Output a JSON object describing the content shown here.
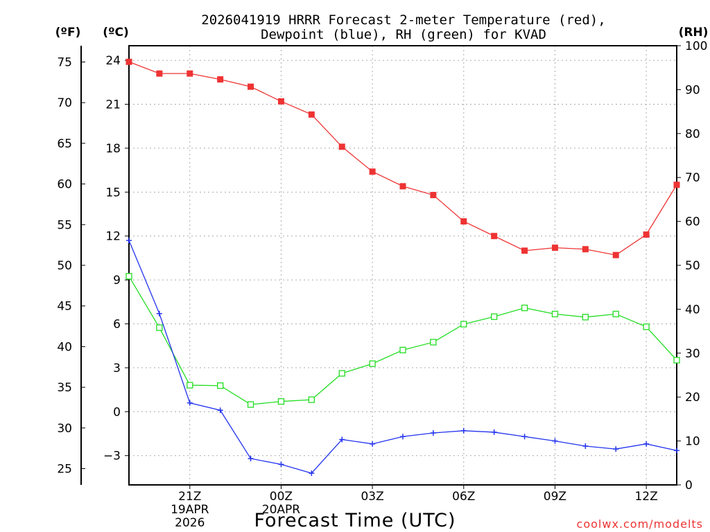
{
  "title_line1": "2026041919 HRRR Forecast 2-meter Temperature (red),",
  "title_line2": "Dewpoint (blue), RH (green) for KVAD",
  "unit_f": "(ºF)",
  "unit_c": "(ºC)",
  "unit_rh": "(RH)",
  "xlabel": "Forecast Time (UTC)",
  "watermark": "coolwx.com/modelts",
  "colors": {
    "temperature": "#ee3333",
    "dewpoint": "#2233ee",
    "rh": "#22dd22",
    "grid": "#aaaaaa"
  },
  "chart_data": {
    "type": "line",
    "x": [
      19,
      20,
      21,
      22,
      23,
      24,
      25,
      26,
      27,
      28,
      29,
      30,
      31,
      32,
      33,
      34,
      35,
      36,
      37
    ],
    "xlim": [
      19,
      37
    ],
    "ylim_c": [
      -5,
      25
    ],
    "ylim_rh": [
      0,
      100
    ],
    "yticks_c": [
      "24",
      "21",
      "18",
      "15",
      "12",
      "9",
      "6",
      "3",
      "0",
      "−3"
    ],
    "yticks_f": [
      "75",
      "70",
      "65",
      "60",
      "55",
      "50",
      "45",
      "40",
      "35",
      "30",
      "25"
    ],
    "yticks_rh": [
      "100",
      "90",
      "80",
      "70",
      "60",
      "50",
      "40",
      "30",
      "20",
      "10",
      "0"
    ],
    "xticks": [
      {
        "x": 21,
        "lines": [
          "21Z",
          "19APR",
          "2026"
        ]
      },
      {
        "x": 24,
        "lines": [
          "00Z",
          "20APR"
        ]
      },
      {
        "x": 27,
        "lines": [
          "03Z"
        ]
      },
      {
        "x": 30,
        "lines": [
          "06Z"
        ]
      },
      {
        "x": 33,
        "lines": [
          "09Z"
        ]
      },
      {
        "x": 36,
        "lines": [
          "12Z"
        ]
      }
    ],
    "series": [
      {
        "name": "Temperature",
        "units": "C",
        "values": [
          23.9,
          23.1,
          23.1,
          22.7,
          22.2,
          21.2,
          20.3,
          18.1,
          16.4,
          15.4,
          14.8,
          13.0,
          12.0,
          11.0,
          11.2,
          11.1,
          10.7,
          12.1,
          15.5
        ]
      },
      {
        "name": "Dewpoint",
        "units": "C",
        "values": [
          11.7,
          6.7,
          0.6,
          0.1,
          -3.2,
          -3.6,
          -4.2,
          -1.9,
          -2.2,
          -1.7,
          -1.45,
          -1.3,
          -1.4,
          -1.7,
          -2.0,
          -2.35,
          -2.55,
          -2.2,
          -2.65
        ]
      },
      {
        "name": "RH",
        "units": "%",
        "values": [
          47.5,
          35.8,
          22.7,
          22.6,
          18.3,
          19.0,
          19.4,
          25.4,
          27.6,
          30.7,
          32.5,
          36.6,
          38.3,
          40.3,
          38.9,
          38.2,
          38.9,
          36.0,
          28.4
        ]
      }
    ]
  }
}
